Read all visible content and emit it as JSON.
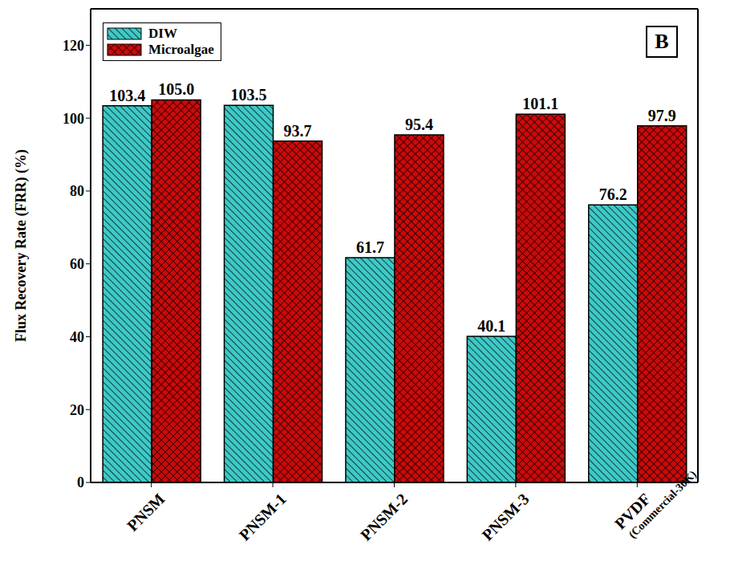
{
  "chart_data": {
    "type": "bar",
    "categories": [
      "PNSM",
      "PNSM-1",
      "PNSM-2",
      "PNSM-3",
      "PVDF (Commercial-30K)"
    ],
    "series": [
      {
        "name": "DIW",
        "color": "#3ec9c6",
        "values": [
          103.4,
          103.5,
          61.7,
          40.1,
          76.2
        ]
      },
      {
        "name": "Microalgae",
        "color": "#cc0a0a",
        "values": [
          105.0,
          93.7,
          95.4,
          101.1,
          97.9
        ],
        "value_labels": [
          "105.0",
          "93.7",
          "95.4",
          "101.1",
          "97.9"
        ]
      }
    ],
    "y_label": "Flux Recovery Rate (FRR) (%)",
    "ylim": [
      0,
      130
    ],
    "yticks": [
      0,
      20,
      40,
      60,
      80,
      100,
      120
    ],
    "legend": "upper left",
    "data_labels": true,
    "annotations": [
      "B"
    ]
  }
}
